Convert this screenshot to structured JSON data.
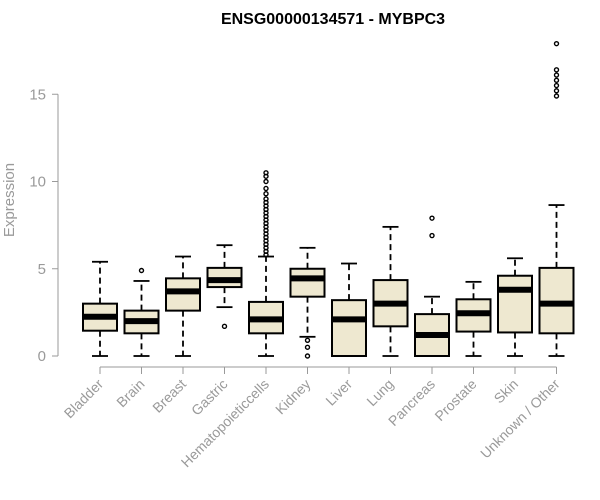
{
  "chart_data": {
    "type": "boxplot",
    "title": "ENSG00000134571 - MYBPC3",
    "xlabel": "",
    "ylabel": "Expression",
    "ylim": [
      0,
      18.5
    ],
    "yticks": [
      0,
      5,
      10,
      15
    ],
    "box_fill": "#EEE8D0",
    "categories": [
      "Bladder",
      "Brain",
      "Breast",
      "Gastric",
      "Hematopoieticcells",
      "Kidney",
      "Liver",
      "Lung",
      "Pancreas",
      "Prostate",
      "Skin",
      "Unknown / Other"
    ],
    "boxes": [
      {
        "category": "Bladder",
        "min": 0,
        "q1": 1.45,
        "median": 2.25,
        "q3": 3.0,
        "max": 5.4,
        "outliers": []
      },
      {
        "category": "Brain",
        "min": 0,
        "q1": 1.3,
        "median": 2.0,
        "q3": 2.6,
        "max": 4.3,
        "outliers": [
          4.9
        ]
      },
      {
        "category": "Breast",
        "min": 0,
        "q1": 2.6,
        "median": 3.7,
        "q3": 4.45,
        "max": 5.7,
        "outliers": []
      },
      {
        "category": "Gastric",
        "min": 2.8,
        "q1": 3.95,
        "median": 4.35,
        "q3": 5.05,
        "max": 6.35,
        "outliers": [
          1.7
        ]
      },
      {
        "category": "Hematopoieticcells",
        "min": 0,
        "q1": 1.3,
        "median": 2.1,
        "q3": 3.1,
        "max": 5.7,
        "outliers": [
          5.8,
          6.0,
          6.2,
          6.4,
          6.6,
          6.8,
          7.0,
          7.2,
          7.4,
          7.6,
          7.8,
          8.0,
          8.2,
          8.4,
          8.6,
          8.8,
          9.0,
          9.3,
          9.6,
          10.0,
          10.3,
          10.5
        ]
      },
      {
        "category": "Kidney",
        "min": 1.1,
        "q1": 3.4,
        "median": 4.45,
        "q3": 5.0,
        "max": 6.2,
        "outliers": [
          0.9,
          0.5,
          0.0
        ]
      },
      {
        "category": "Liver",
        "min": 0,
        "q1": 0,
        "median": 2.1,
        "q3": 3.2,
        "max": 5.3,
        "outliers": []
      },
      {
        "category": "Lung",
        "min": 0,
        "q1": 1.7,
        "median": 3.0,
        "q3": 4.35,
        "max": 7.4,
        "outliers": []
      },
      {
        "category": "Pancreas",
        "min": 0,
        "q1": 0,
        "median": 1.2,
        "q3": 2.4,
        "max": 3.4,
        "outliers": [
          6.9,
          7.9
        ]
      },
      {
        "category": "Prostate",
        "min": 0,
        "q1": 1.4,
        "median": 2.45,
        "q3": 3.25,
        "max": 4.25,
        "outliers": []
      },
      {
        "category": "Skin",
        "min": 0,
        "q1": 1.35,
        "median": 3.8,
        "q3": 4.6,
        "max": 5.6,
        "outliers": []
      },
      {
        "category": "Unknown / Other",
        "min": 0,
        "q1": 1.3,
        "median": 3.0,
        "q3": 5.05,
        "max": 8.65,
        "outliers": [
          14.9,
          15.2,
          15.5,
          15.8,
          16.1,
          16.4,
          17.9
        ]
      }
    ]
  }
}
